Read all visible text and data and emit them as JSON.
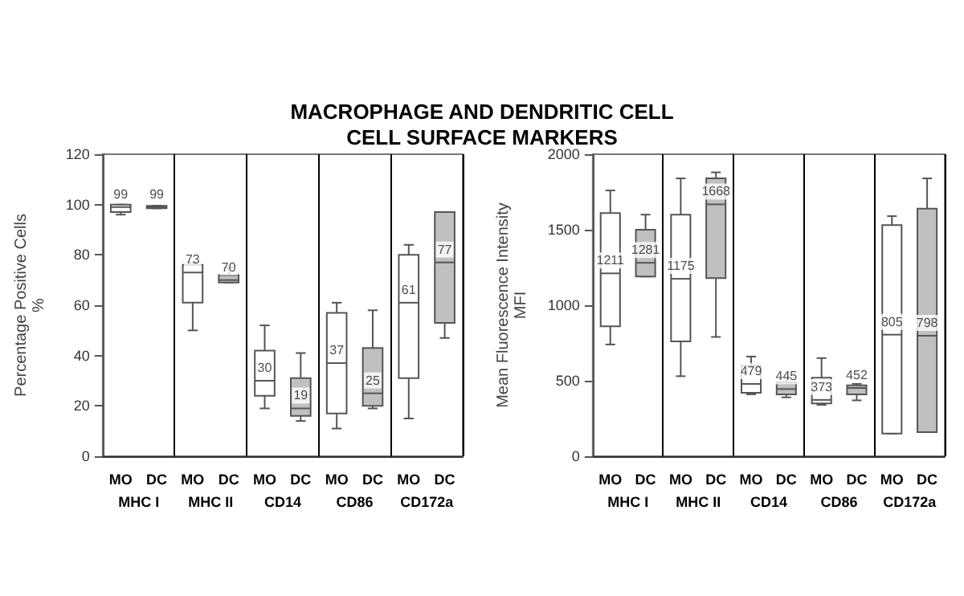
{
  "chart_data": [
    {
      "type": "box",
      "title": "MACROPHAGE AND DENDRITIC CELL\nCELL SURFACE MARKERS",
      "ylabel": "Percentage Positive Cells\n%",
      "categories": [
        "MO",
        "DC",
        "MO",
        "DC",
        "MO",
        "DC",
        "MO",
        "DC",
        "MO",
        "DC"
      ],
      "annotations": [
        "MHC I",
        "MHC II",
        "CD14",
        "CD86",
        "CD172a"
      ],
      "boxes": [
        {
          "low": 96,
          "q1": 97,
          "median": 99,
          "q3": 100,
          "high": 100
        },
        {
          "low": 98.5,
          "q1": 98.5,
          "median": 99,
          "q3": 99.5,
          "high": 99.5
        },
        {
          "low": 50,
          "q1": 61,
          "median": 73,
          "q3": 76,
          "high": 77
        },
        {
          "low": 69,
          "q1": 69,
          "median": 70,
          "q3": 72,
          "high": 75
        },
        {
          "low": 19,
          "q1": 24,
          "median": 30,
          "q3": 42,
          "high": 52
        },
        {
          "low": 14,
          "q1": 16,
          "median": 19,
          "q3": 31,
          "high": 41
        },
        {
          "low": 11,
          "q1": 17,
          "median": 37,
          "q3": 57,
          "high": 61
        },
        {
          "low": 19,
          "q1": 20,
          "median": 25,
          "q3": 43,
          "high": 58
        },
        {
          "low": 15,
          "q1": 31,
          "median": 61,
          "q3": 80,
          "high": 84
        },
        {
          "low": 47,
          "q1": 53,
          "median": 77,
          "q3": 97,
          "high": 97
        }
      ],
      "value_labels": [
        "99",
        "99",
        "73",
        "70",
        "30",
        "19",
        "37",
        "25",
        "61",
        "77"
      ],
      "colors": [
        "#ffffff",
        "#c0c0c0",
        "#ffffff",
        "#c0c0c0",
        "#ffffff",
        "#c0c0c0",
        "#ffffff",
        "#c0c0c0",
        "#ffffff",
        "#c0c0c0"
      ],
      "ylim": [
        0,
        120
      ],
      "yticks": [
        0,
        20,
        40,
        60,
        80,
        100,
        120
      ]
    },
    {
      "type": "box",
      "ylabel": "Mean Fluorescence Intensity\nMFI",
      "categories": [
        "MO",
        "DC",
        "MO",
        "DC",
        "MO",
        "DC",
        "MO",
        "DC",
        "MO",
        "DC"
      ],
      "annotations": [
        "MHC I",
        "MHC II",
        "CD14",
        "CD86",
        "CD172a"
      ],
      "boxes": [
        {
          "low": 740,
          "q1": 860,
          "median": 1211,
          "q3": 1610,
          "high": 1760
        },
        {
          "low": 1190,
          "q1": 1190,
          "median": 1281,
          "q3": 1500,
          "high": 1600
        },
        {
          "low": 530,
          "q1": 760,
          "median": 1175,
          "q3": 1600,
          "high": 1840
        },
        {
          "low": 790,
          "q1": 1180,
          "median": 1668,
          "q3": 1840,
          "high": 1880
        },
        {
          "low": 410,
          "q1": 420,
          "median": 479,
          "q3": 600,
          "high": 660
        },
        {
          "low": 390,
          "q1": 410,
          "median": 445,
          "q3": 490,
          "high": 520
        },
        {
          "low": 340,
          "q1": 350,
          "median": 373,
          "q3": 520,
          "high": 650
        },
        {
          "low": 370,
          "q1": 410,
          "median": 452,
          "q3": 470,
          "high": 480
        },
        {
          "low": 150,
          "q1": 150,
          "median": 805,
          "q3": 1530,
          "high": 1590
        },
        {
          "low": 160,
          "q1": 160,
          "median": 798,
          "q3": 1640,
          "high": 1840
        }
      ],
      "value_labels": [
        "1211",
        "1281",
        "1175",
        "1668",
        "479",
        "445",
        "373",
        "452",
        "805",
        "798"
      ],
      "colors": [
        "#ffffff",
        "#c0c0c0",
        "#ffffff",
        "#c0c0c0",
        "#ffffff",
        "#c0c0c0",
        "#ffffff",
        "#c0c0c0",
        "#ffffff",
        "#c0c0c0"
      ],
      "ylim": [
        0,
        2000
      ],
      "yticks": [
        0,
        500,
        1000,
        1500,
        2000
      ]
    }
  ]
}
